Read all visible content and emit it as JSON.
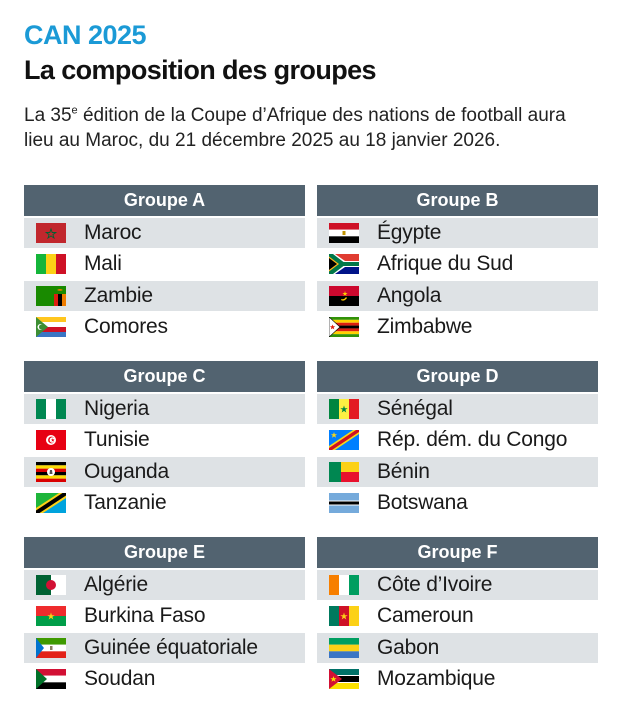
{
  "header": {
    "kicker": "CAN 2025",
    "title": "La composition des groupes",
    "intro_pre": "La 35",
    "intro_sup": "e",
    "intro_post": " édition de la Coupe d’Afrique des nations de football aura lieu au Maroc, du 21 décembre 2025 au 18 janvier 2026."
  },
  "groups": [
    {
      "name": "Groupe A",
      "countries": [
        {
          "name": "Maroc",
          "flag": "morocco-flag"
        },
        {
          "name": "Mali",
          "flag": "mali-flag"
        },
        {
          "name": "Zambie",
          "flag": "zambia-flag"
        },
        {
          "name": "Comores",
          "flag": "comoros-flag"
        }
      ]
    },
    {
      "name": "Groupe B",
      "countries": [
        {
          "name": "Égypte",
          "flag": "egypt-flag"
        },
        {
          "name": "Afrique du Sud",
          "flag": "south-africa-flag"
        },
        {
          "name": "Angola",
          "flag": "angola-flag"
        },
        {
          "name": "Zimbabwe",
          "flag": "zimbabwe-flag"
        }
      ]
    },
    {
      "name": "Groupe C",
      "countries": [
        {
          "name": "Nigeria",
          "flag": "nigeria-flag"
        },
        {
          "name": "Tunisie",
          "flag": "tunisia-flag"
        },
        {
          "name": "Ouganda",
          "flag": "uganda-flag"
        },
        {
          "name": "Tanzanie",
          "flag": "tanzania-flag"
        }
      ]
    },
    {
      "name": "Groupe D",
      "countries": [
        {
          "name": "Sénégal",
          "flag": "senegal-flag"
        },
        {
          "name": "Rép. dém. du Congo",
          "flag": "dr-congo-flag"
        },
        {
          "name": "Bénin",
          "flag": "benin-flag"
        },
        {
          "name": "Botswana",
          "flag": "botswana-flag"
        }
      ]
    },
    {
      "name": "Groupe E",
      "countries": [
        {
          "name": "Algérie",
          "flag": "algeria-flag"
        },
        {
          "name": "Burkina Faso",
          "flag": "burkina-faso-flag"
        },
        {
          "name": "Guinée équatoriale",
          "flag": "equatorial-guinea-flag"
        },
        {
          "name": "Soudan",
          "flag": "sudan-flag"
        }
      ]
    },
    {
      "name": "Groupe F",
      "countries": [
        {
          "name": "Côte d’Ivoire",
          "flag": "ivory-coast-flag"
        },
        {
          "name": "Cameroun",
          "flag": "cameroon-flag"
        },
        {
          "name": "Gabon",
          "flag": "gabon-flag"
        },
        {
          "name": "Mozambique",
          "flag": "mozambique-flag"
        }
      ]
    }
  ],
  "colors": {
    "accent": "#1b9ad6",
    "header_bg": "#526370",
    "row_alt": "#dee2e5"
  }
}
